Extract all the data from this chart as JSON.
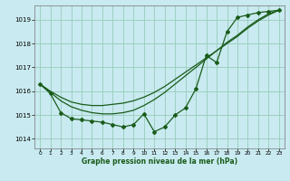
{
  "xlabel": "Graphe pression niveau de la mer (hPa)",
  "background_color": "#c8eaf0",
  "grid_color": "#99ccbb",
  "line_color": "#1a5c1a",
  "ylim": [
    1013.6,
    1019.6
  ],
  "xlim": [
    -0.5,
    23.5
  ],
  "yticks": [
    1014,
    1015,
    1016,
    1017,
    1018,
    1019
  ],
  "xticks": [
    0,
    1,
    2,
    3,
    4,
    5,
    6,
    7,
    8,
    9,
    10,
    11,
    12,
    13,
    14,
    15,
    16,
    17,
    18,
    19,
    20,
    21,
    22,
    23
  ],
  "line_main_x": [
    0,
    1,
    2,
    3,
    4,
    5,
    6,
    7,
    8,
    9,
    10,
    11,
    12,
    13,
    14,
    15,
    16,
    17,
    18,
    19,
    20,
    21,
    22,
    23
  ],
  "line_main_y": [
    1016.3,
    1015.9,
    1015.1,
    1014.85,
    1014.8,
    1014.75,
    1014.7,
    1014.6,
    1014.5,
    1014.6,
    1015.05,
    1014.3,
    1014.5,
    1015.0,
    1015.3,
    1016.1,
    1017.5,
    1017.2,
    1018.5,
    1019.1,
    1019.2,
    1019.3,
    1019.35,
    1019.4
  ],
  "line_smooth1_x": [
    0,
    1,
    2,
    3,
    4,
    5,
    6,
    7,
    8,
    9,
    10,
    11,
    12,
    13,
    14,
    15,
    16,
    17,
    18,
    19,
    20,
    21,
    22,
    23
  ],
  "line_smooth1_y": [
    1016.3,
    1016.0,
    1015.75,
    1015.55,
    1015.45,
    1015.4,
    1015.4,
    1015.45,
    1015.5,
    1015.6,
    1015.75,
    1015.95,
    1016.2,
    1016.5,
    1016.8,
    1017.1,
    1017.4,
    1017.7,
    1018.0,
    1018.3,
    1018.65,
    1018.95,
    1019.2,
    1019.4
  ],
  "line_smooth2_x": [
    0,
    1,
    2,
    3,
    4,
    5,
    6,
    7,
    8,
    9,
    10,
    11,
    12,
    13,
    14,
    15,
    16,
    17,
    18,
    19,
    20,
    21,
    22,
    23
  ],
  "line_smooth2_y": [
    1016.3,
    1015.95,
    1015.6,
    1015.35,
    1015.2,
    1015.1,
    1015.05,
    1015.05,
    1015.1,
    1015.2,
    1015.4,
    1015.65,
    1015.95,
    1016.3,
    1016.65,
    1017.0,
    1017.35,
    1017.7,
    1018.05,
    1018.35,
    1018.7,
    1019.0,
    1019.25,
    1019.4
  ],
  "marker": "D",
  "markersize": 2.0,
  "linewidth": 0.9
}
